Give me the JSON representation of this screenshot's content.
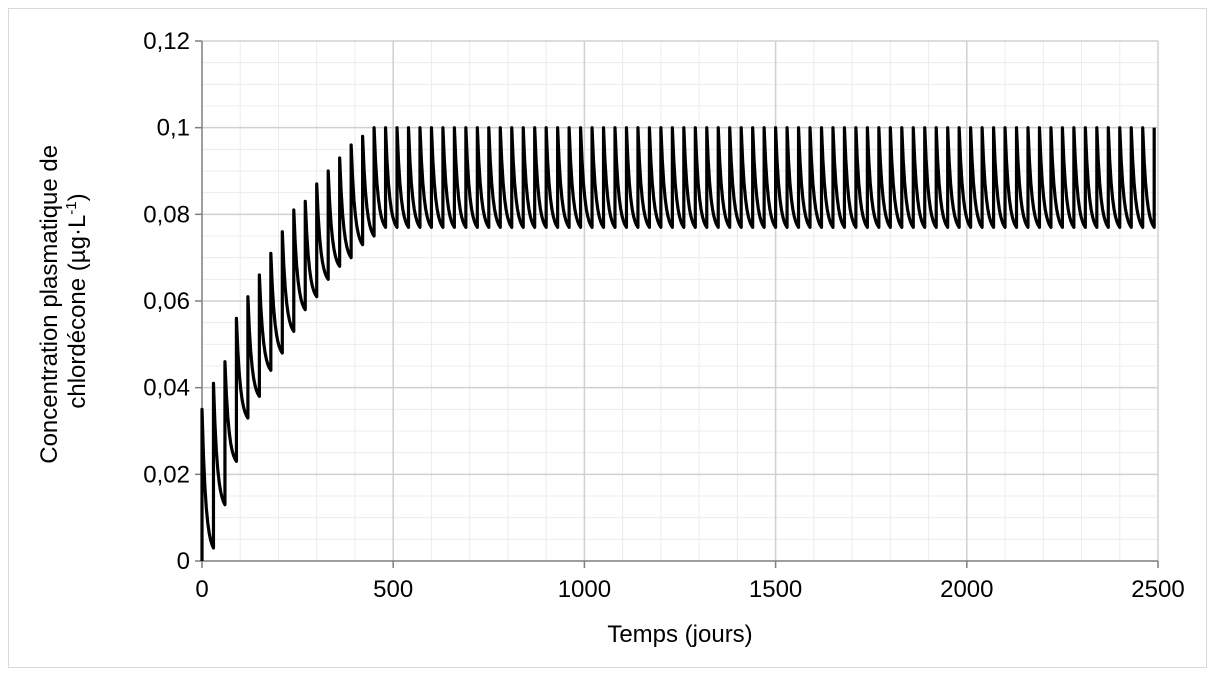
{
  "chart_data": {
    "type": "line",
    "title": "",
    "xlabel": "Temps (jours)",
    "ylabel": {
      "line1": "Concentration plasmatique de",
      "line2_prefix": "chlordécone (µg·L",
      "line2_sup": "-1",
      "line2_suffix": ")"
    },
    "xlim": [
      0,
      2500
    ],
    "ylim": [
      0,
      0.12
    ],
    "x_ticks": [
      {
        "value": 0,
        "label": "0"
      },
      {
        "value": 500,
        "label": "500"
      },
      {
        "value": 1000,
        "label": "1000"
      },
      {
        "value": 1500,
        "label": "1500"
      },
      {
        "value": 2000,
        "label": "2000"
      },
      {
        "value": 2500,
        "label": "2500"
      }
    ],
    "y_ticks": [
      {
        "value": 0,
        "label": "0"
      },
      {
        "value": 0.02,
        "label": "0,02"
      },
      {
        "value": 0.04,
        "label": "0,04"
      },
      {
        "value": 0.06,
        "label": "0,06"
      },
      {
        "value": 0.08,
        "label": "0,08"
      },
      {
        "value": 0.1,
        "label": "0,1"
      },
      {
        "value": 0.12,
        "label": "0,12"
      }
    ],
    "grid": {
      "major": true,
      "minor": true,
      "x_minor_step": 100,
      "y_minor_step": 0.005
    },
    "legend": "none",
    "series": [
      {
        "color": "#000000",
        "dose_interval_days": 30,
        "steady_state_peak": 0.1,
        "steady_state_trough": 0.077,
        "note_points": "sawtooth: peak at each dose then decay to trough before next dose",
        "peaks": [
          [
            0,
            0.035
          ],
          [
            30,
            0.041
          ],
          [
            60,
            0.046
          ],
          [
            90,
            0.056
          ],
          [
            120,
            0.061
          ],
          [
            150,
            0.066
          ],
          [
            180,
            0.071
          ],
          [
            210,
            0.076
          ],
          [
            240,
            0.081
          ],
          [
            270,
            0.083
          ],
          [
            300,
            0.087
          ],
          [
            330,
            0.09
          ],
          [
            360,
            0.093
          ],
          [
            390,
            0.096
          ],
          [
            420,
            0.098
          ],
          [
            450,
            0.1
          ]
        ],
        "troughs": [
          [
            30,
            0.003
          ],
          [
            60,
            0.013
          ],
          [
            90,
            0.023
          ],
          [
            120,
            0.033
          ],
          [
            150,
            0.038
          ],
          [
            180,
            0.044
          ],
          [
            210,
            0.048
          ],
          [
            240,
            0.053
          ],
          [
            270,
            0.058
          ],
          [
            300,
            0.061
          ],
          [
            330,
            0.065
          ],
          [
            360,
            0.068
          ],
          [
            390,
            0.07
          ],
          [
            420,
            0.073
          ],
          [
            450,
            0.075
          ]
        ],
        "end_day": 2490
      }
    ]
  }
}
